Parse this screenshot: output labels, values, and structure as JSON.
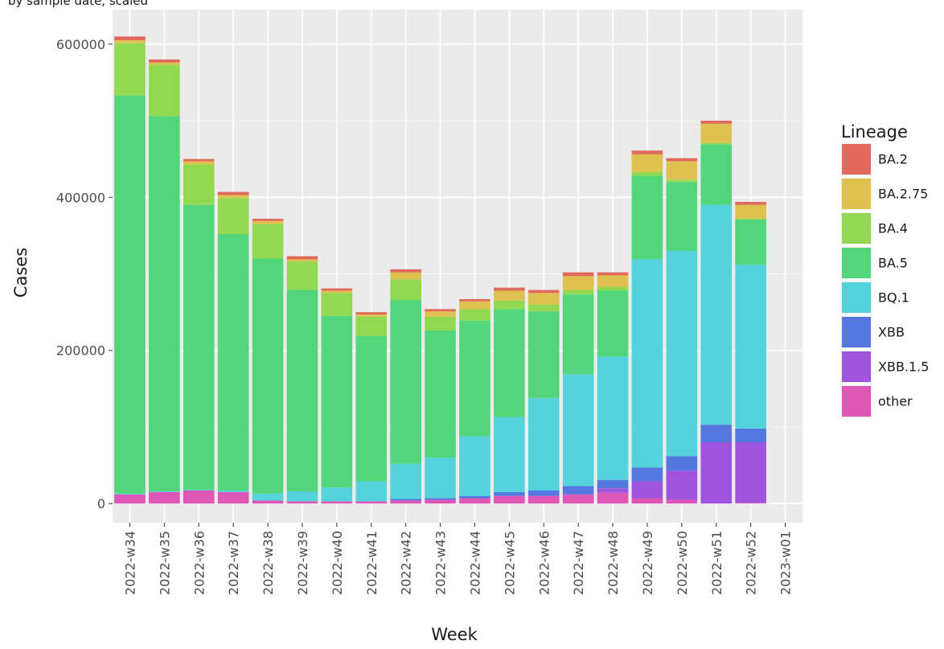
{
  "chart_data": {
    "type": "bar",
    "stacked": true,
    "subtitle": "by sample date, scaled",
    "xlabel": "Week",
    "ylabel": "Cases",
    "ylim": [
      -25000,
      645000
    ],
    "yticks": [
      0,
      200000,
      400000,
      600000
    ],
    "ytick_labels": [
      "0",
      "200000",
      "400000",
      "600000"
    ],
    "grid": true,
    "legend_title": "Lineage",
    "legend_position": "right",
    "categories": [
      "2022-w34",
      "2022-w35",
      "2022-w36",
      "2022-w37",
      "2022-w38",
      "2022-w39",
      "2022-w40",
      "2022-w41",
      "2022-w42",
      "2022-w43",
      "2022-w44",
      "2022-w45",
      "2022-w46",
      "2022-w47",
      "2022-w48",
      "2022-w49",
      "2022-w50",
      "2022-w51",
      "2022-w52",
      "2023-w01"
    ],
    "series": [
      {
        "name": "BA.2",
        "color": "#E16A5C",
        "values": [
          5000,
          4000,
          3000,
          4000,
          3000,
          4000,
          3000,
          3000,
          4000,
          3000,
          3000,
          4000,
          4000,
          5000,
          4000,
          5000,
          4000,
          4000,
          4000,
          0
        ]
      },
      {
        "name": "BA.2.75",
        "color": "#DEC150",
        "values": [
          4000,
          3000,
          4000,
          4000,
          4000,
          3000,
          3000,
          3000,
          9000,
          7000,
          10000,
          13000,
          15000,
          18000,
          15000,
          23000,
          24000,
          25000,
          18000,
          0
        ]
      },
      {
        "name": "BA.4",
        "color": "#92D951",
        "values": [
          68000,
          67000,
          53000,
          47000,
          45000,
          37000,
          30000,
          25000,
          27000,
          18000,
          15000,
          11000,
          9000,
          6000,
          5000,
          5000,
          3000,
          2000,
          1000,
          0
        ]
      },
      {
        "name": "BA.5",
        "color": "#53D57C",
        "values": [
          520000,
          490000,
          372000,
          335000,
          307000,
          263000,
          224000,
          190000,
          214000,
          166000,
          151000,
          141000,
          113000,
          104000,
          86000,
          109000,
          90000,
          79000,
          59000,
          0
        ]
      },
      {
        "name": "BQ.1",
        "color": "#55D2DB",
        "values": [
          1000,
          1000,
          1000,
          2000,
          9000,
          13000,
          18000,
          26000,
          46000,
          53000,
          78000,
          98000,
          121000,
          146000,
          161000,
          272000,
          268000,
          287000,
          214000,
          0
        ]
      },
      {
        "name": "XBB",
        "color": "#5577E0",
        "values": [
          0,
          0,
          0,
          0,
          0,
          0,
          0,
          0,
          2000,
          2000,
          3000,
          5000,
          7000,
          11000,
          11000,
          18000,
          19000,
          23000,
          18000,
          0
        ]
      },
      {
        "name": "XBB.1.5",
        "color": "#A054DE",
        "values": [
          0,
          0,
          0,
          0,
          0,
          0,
          0,
          0,
          0,
          0,
          0,
          0,
          0,
          0,
          6000,
          22000,
          38000,
          80000,
          79000,
          0
        ]
      },
      {
        "name": "other",
        "color": "#DE57B6",
        "values": [
          12000,
          15000,
          17000,
          15000,
          4000,
          3000,
          3000,
          3000,
          4000,
          5000,
          7000,
          10000,
          10000,
          12000,
          14000,
          7000,
          5000,
          0,
          1000,
          0
        ]
      }
    ]
  },
  "style": {
    "panel_bg": "#EBEBEB",
    "grid_major": "#FFFFFF",
    "grid_minor": "#F5F5F5",
    "tick_color": "#333333"
  }
}
